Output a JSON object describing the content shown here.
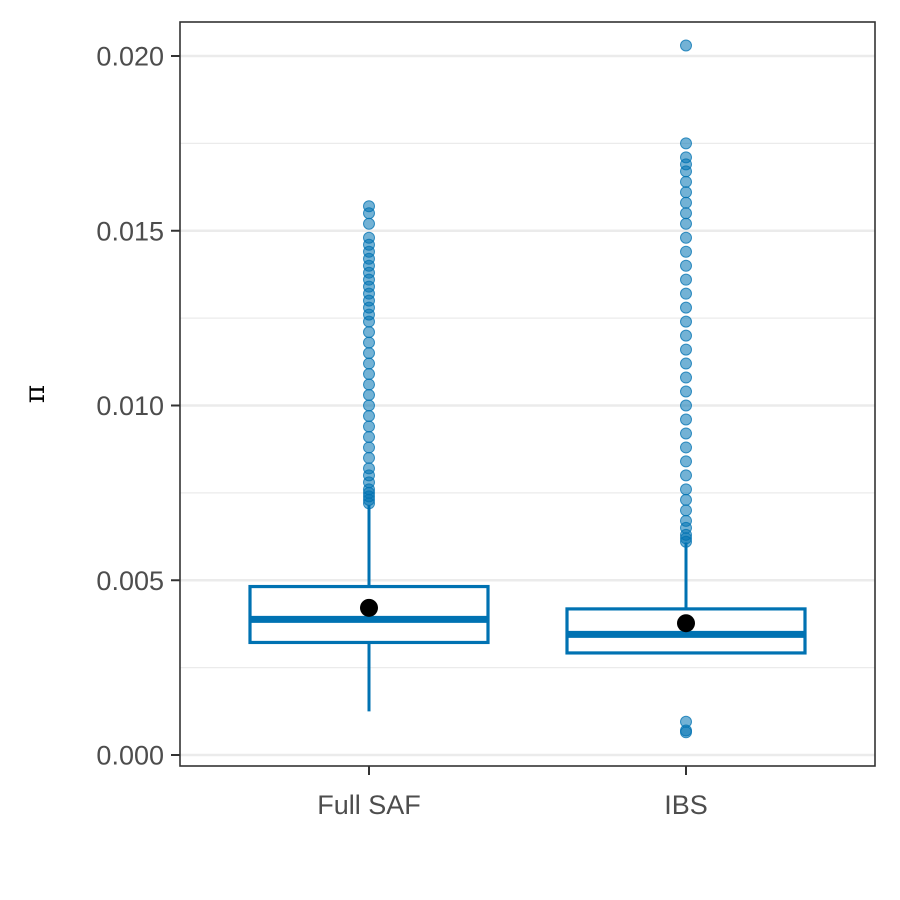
{
  "chart_data": {
    "type": "boxplot",
    "title": "",
    "xlabel": "",
    "ylabel": "π",
    "ylim": [
      -0.0003,
      0.0213
    ],
    "y_ticks": [
      0.0,
      0.005,
      0.01,
      0.015,
      0.02
    ],
    "y_tick_labels": [
      "0.000",
      "0.005",
      "0.010",
      "0.015",
      "0.020"
    ],
    "categories": [
      "Full SAF",
      "IBS"
    ],
    "grid": true,
    "legend": "none",
    "colors": {
      "box": "#0072b2",
      "mean": "#000000",
      "grid": "#ebebeb",
      "border": "#333333"
    },
    "series": [
      {
        "category": "Full SAF",
        "whisker_low": 0.00125,
        "q1": 0.00322,
        "median": 0.00388,
        "q3": 0.00482,
        "whisker_high": 0.00715,
        "mean": 0.00421,
        "outliers": [
          0.0072,
          0.0073,
          0.0074,
          0.0075,
          0.0076,
          0.0078,
          0.008,
          0.0082,
          0.0085,
          0.0088,
          0.0091,
          0.0094,
          0.0097,
          0.01,
          0.0103,
          0.0106,
          0.0109,
          0.0112,
          0.0115,
          0.0118,
          0.0121,
          0.0124,
          0.0126,
          0.0128,
          0.013,
          0.0132,
          0.0134,
          0.0136,
          0.0138,
          0.014,
          0.0142,
          0.0144,
          0.0146,
          0.0148,
          0.0152,
          0.0155,
          0.0157
        ]
      },
      {
        "category": "IBS",
        "whisker_low": 0.00288,
        "q1": 0.00292,
        "median": 0.00345,
        "q3": 0.00418,
        "whisker_high": 0.00608,
        "mean": 0.00377,
        "outliers": [
          0.00065,
          0.0007,
          0.00095,
          0.0061,
          0.0062,
          0.0063,
          0.0065,
          0.0067,
          0.007,
          0.0073,
          0.0076,
          0.008,
          0.0084,
          0.0088,
          0.0092,
          0.0096,
          0.01,
          0.0104,
          0.0108,
          0.0112,
          0.0116,
          0.012,
          0.0124,
          0.0128,
          0.0132,
          0.0136,
          0.014,
          0.0144,
          0.0148,
          0.0152,
          0.0155,
          0.0158,
          0.0161,
          0.0164,
          0.0167,
          0.0169,
          0.0171,
          0.0175,
          0.0203
        ]
      }
    ]
  }
}
